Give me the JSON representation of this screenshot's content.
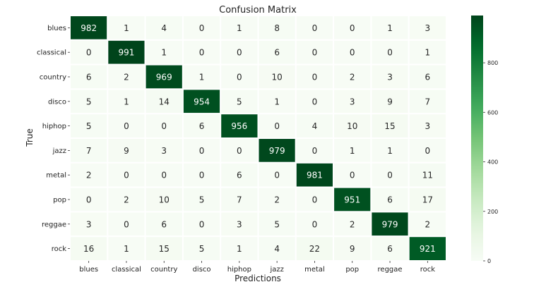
{
  "chart_data": {
    "type": "heatmap",
    "title": "Confusion Matrix",
    "xlabel": "Predictions",
    "ylabel": "True",
    "x_categories": [
      "blues",
      "classical",
      "country",
      "disco",
      "hiphop",
      "jazz",
      "metal",
      "pop",
      "reggae",
      "rock"
    ],
    "y_categories": [
      "blues",
      "classical",
      "country",
      "disco",
      "hiphop",
      "jazz",
      "metal",
      "pop",
      "reggae",
      "rock"
    ],
    "values": [
      [
        982,
        1,
        4,
        0,
        1,
        8,
        0,
        0,
        1,
        3
      ],
      [
        0,
        991,
        1,
        0,
        0,
        6,
        0,
        0,
        0,
        1
      ],
      [
        6,
        2,
        969,
        1,
        0,
        10,
        0,
        2,
        3,
        6
      ],
      [
        5,
        1,
        14,
        954,
        5,
        1,
        0,
        3,
        9,
        7
      ],
      [
        5,
        0,
        0,
        6,
        956,
        0,
        4,
        10,
        15,
        3
      ],
      [
        7,
        9,
        3,
        0,
        0,
        979,
        0,
        1,
        1,
        0
      ],
      [
        2,
        0,
        0,
        0,
        6,
        0,
        981,
        0,
        0,
        11
      ],
      [
        0,
        2,
        10,
        5,
        7,
        2,
        0,
        951,
        6,
        17
      ],
      [
        3,
        0,
        6,
        0,
        3,
        5,
        0,
        2,
        979,
        2
      ],
      [
        16,
        1,
        15,
        5,
        1,
        4,
        22,
        9,
        6,
        921
      ]
    ],
    "colorbar": {
      "min": 0,
      "max": 991,
      "ticks": [
        0,
        200,
        400,
        600,
        800
      ],
      "colormap": "Greens"
    },
    "grid": false
  }
}
